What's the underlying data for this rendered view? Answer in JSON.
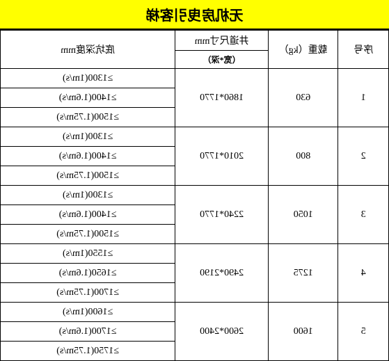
{
  "title": "无机房曳引客梯",
  "headers": {
    "serial": "序号",
    "load": "载重（kg）",
    "shaft": "井道尺寸mm",
    "shaft_sub": "（宽*深）",
    "pit": "底坑深度mm"
  },
  "rows": [
    {
      "serial": "1",
      "load": "630",
      "shaft": "1860*1770",
      "pits": [
        "≥1300(1m/s)",
        "≥1400(1.6m/s)",
        "≥1500(1.75m/s)"
      ]
    },
    {
      "serial": "2",
      "load": "800",
      "shaft": "2010*1770",
      "pits": [
        "≥1300(1m/s)",
        "≥1400(1.6m/s)",
        "≥1500(1.75m/s)"
      ]
    },
    {
      "serial": "3",
      "load": "1050",
      "shaft": "2240*1770",
      "pits": [
        "≥1300(1m/s)",
        "≥1400(1.6m/s)",
        "≥1500(1.75m/s)"
      ]
    },
    {
      "serial": "4",
      "load": "1275",
      "shaft": "2490*2190",
      "pits": [
        "≥1550(1m/s)",
        "≥1650(1.6m/s)",
        "≥1700(1.75m/s)"
      ]
    },
    {
      "serial": "5",
      "load": "1600",
      "shaft": "2600*2400",
      "pits": [
        "≥1600(1m/s)",
        "≥1700(1.6m/s)",
        "≥1750(1.75m/s)"
      ]
    }
  ]
}
